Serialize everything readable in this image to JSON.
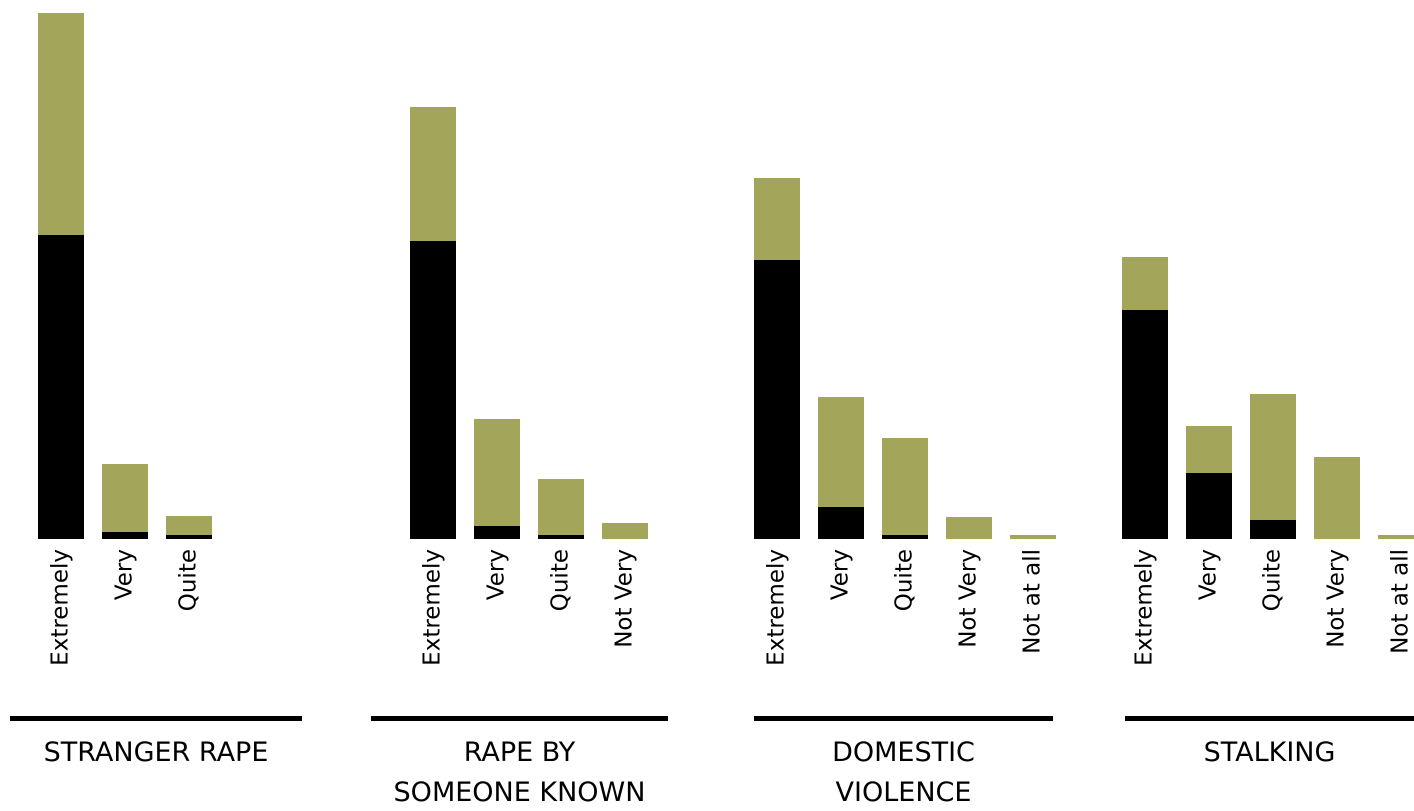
{
  "chart_data": [
    {
      "type": "stacked-bar",
      "title": "STRANGER RAPE",
      "categories": [
        "Extremely",
        "Very",
        "Quite"
      ],
      "series": [
        {
          "color": "#000000",
          "values": [
            304,
            7,
            4
          ]
        },
        {
          "color": "#a2a55a",
          "values": [
            222,
            68,
            19
          ]
        }
      ],
      "ylim": [
        0,
        526
      ]
    },
    {
      "type": "stacked-bar",
      "title": "RAPE BY\nSOMEONE KNOWN",
      "categories": [
        "Extremely",
        "Very",
        "Quite",
        "Not Very"
      ],
      "series": [
        {
          "color": "#000000",
          "values": [
            298,
            13,
            4,
            0
          ]
        },
        {
          "color": "#a2a55a",
          "values": [
            134,
            107,
            56,
            16
          ]
        }
      ],
      "ylim": [
        0,
        526
      ]
    },
    {
      "type": "stacked-bar",
      "title": "DOMESTIC\nVIOLENCE",
      "categories": [
        "Extremely",
        "Very",
        "Quite",
        "Not Very",
        "Not at all"
      ],
      "series": [
        {
          "color": "#000000",
          "values": [
            279,
            32,
            4,
            0,
            0
          ]
        },
        {
          "color": "#a2a55a",
          "values": [
            82,
            110,
            97,
            22,
            4
          ]
        }
      ],
      "ylim": [
        0,
        526
      ]
    },
    {
      "type": "stacked-bar",
      "title": "STALKING",
      "categories": [
        "Extremely",
        "Very",
        "Quite",
        "Not Very",
        "Not at all"
      ],
      "series": [
        {
          "color": "#000000",
          "values": [
            229,
            66,
            19,
            0,
            0
          ]
        },
        {
          "color": "#a2a55a",
          "values": [
            53,
            47,
            126,
            82,
            4
          ]
        }
      ],
      "ylim": [
        0,
        526
      ]
    }
  ]
}
